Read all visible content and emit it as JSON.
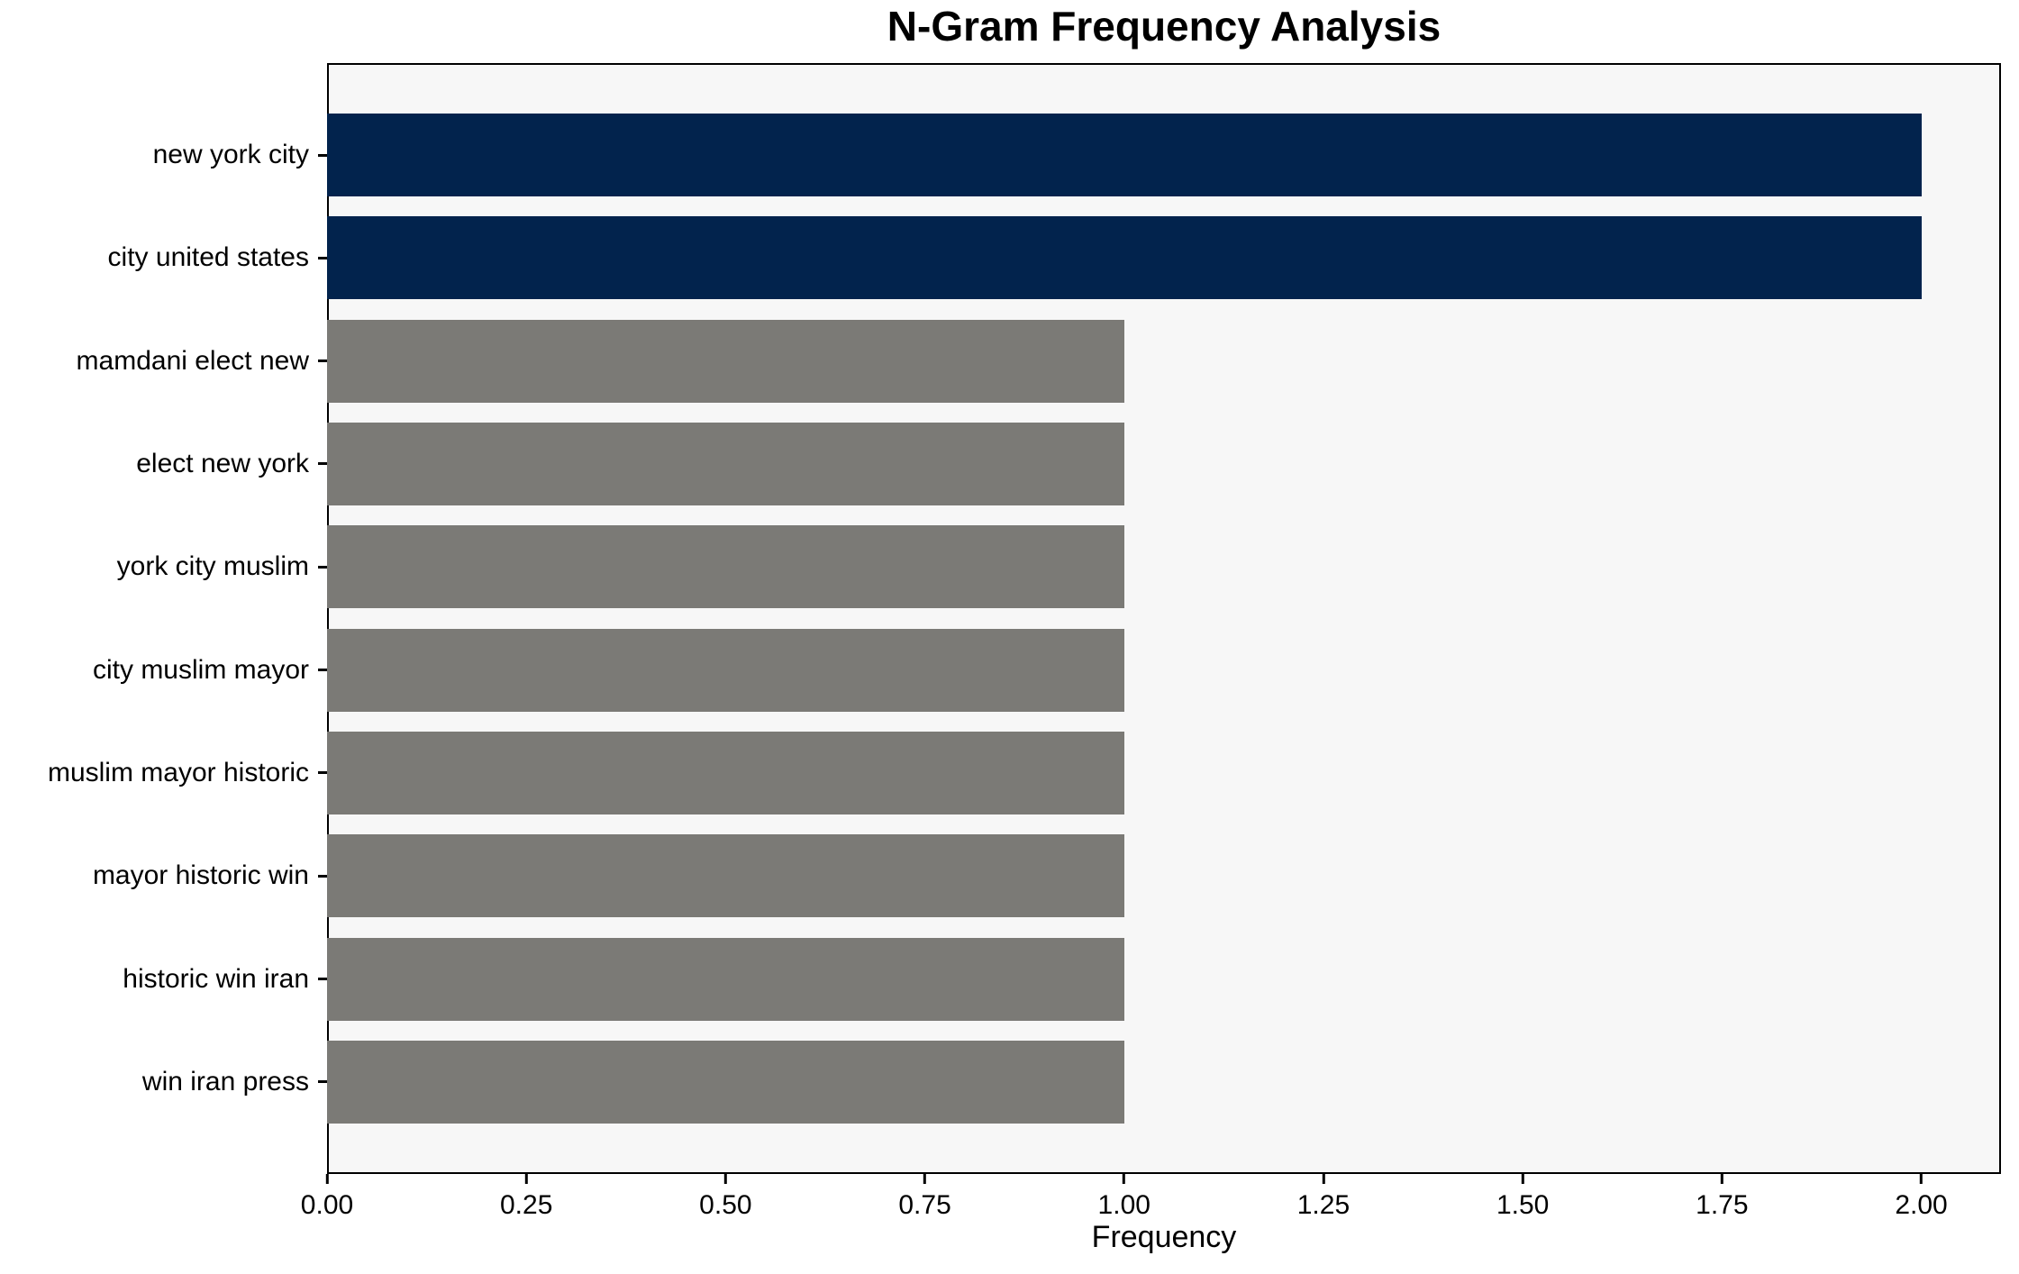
{
  "chart_data": {
    "type": "bar",
    "orientation": "horizontal",
    "title": "N-Gram Frequency Analysis",
    "xlabel": "Frequency",
    "ylabel": "",
    "categories": [
      "new york city",
      "city united states",
      "mamdani elect new",
      "elect new york",
      "york city muslim",
      "city muslim mayor",
      "muslim mayor historic",
      "mayor historic win",
      "historic win iran",
      "win iran press"
    ],
    "values": [
      2,
      2,
      1,
      1,
      1,
      1,
      1,
      1,
      1,
      1
    ],
    "bar_colors": [
      "#02234d",
      "#02234d",
      "#7b7a76",
      "#7b7a76",
      "#7b7a76",
      "#7b7a76",
      "#7b7a76",
      "#7b7a76",
      "#7b7a76",
      "#7b7a76"
    ],
    "xlim": [
      0,
      2.1
    ],
    "xticks": [
      {
        "value": 0.0,
        "label": "0.00"
      },
      {
        "value": 0.25,
        "label": "0.25"
      },
      {
        "value": 0.5,
        "label": "0.50"
      },
      {
        "value": 0.75,
        "label": "0.75"
      },
      {
        "value": 1.0,
        "label": "1.00"
      },
      {
        "value": 1.25,
        "label": "1.25"
      },
      {
        "value": 1.5,
        "label": "1.50"
      },
      {
        "value": 1.75,
        "label": "1.75"
      },
      {
        "value": 2.0,
        "label": "2.00"
      }
    ],
    "grid": false,
    "legend": null,
    "plot_background": "#f7f7f7",
    "figure_background": "#ffffff",
    "axis_color": "#000000",
    "text_color": "#000000"
  }
}
